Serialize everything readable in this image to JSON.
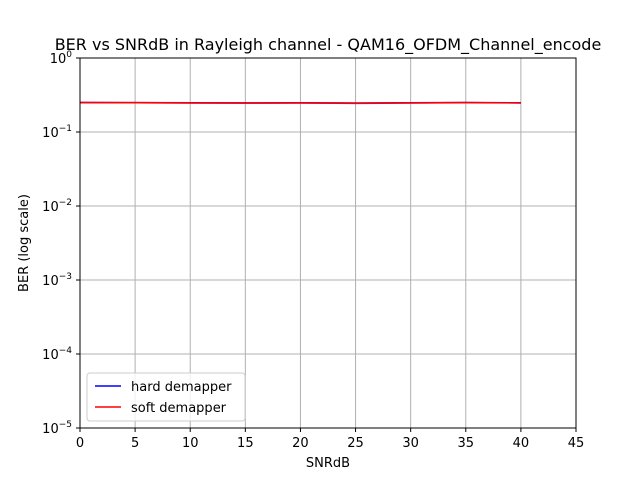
{
  "chart_data": {
    "type": "line",
    "title": "BER vs SNRdB in Rayleigh channel - QAM16_OFDM_Channel_encode",
    "xlabel": "SNRdB",
    "ylabel": "BER (log scale)",
    "xlim": [
      0,
      45
    ],
    "ylim": [
      1e-05,
      1
    ],
    "yscale": "log",
    "grid": true,
    "legend_position": "lower-left",
    "x_ticks": [
      0,
      5,
      10,
      15,
      20,
      25,
      30,
      35,
      40,
      45
    ],
    "y_ticks": [
      {
        "value": 1e-05,
        "base": "10",
        "exp": "−5"
      },
      {
        "value": 0.0001,
        "base": "10",
        "exp": "−4"
      },
      {
        "value": 0.001,
        "base": "10",
        "exp": "−3"
      },
      {
        "value": 0.01,
        "base": "10",
        "exp": "−2"
      },
      {
        "value": 0.1,
        "base": "10",
        "exp": "−1"
      },
      {
        "value": 1,
        "base": "10",
        "exp": "0"
      }
    ],
    "x": [
      0,
      5,
      10,
      15,
      20,
      25,
      30,
      35,
      40
    ],
    "series": [
      {
        "name": "hard demapper",
        "color": "#0000ff",
        "values": [
          0.25,
          0.249,
          0.248,
          0.247,
          0.248,
          0.246,
          0.248,
          0.25,
          0.248
        ]
      },
      {
        "name": "soft demapper",
        "color": "#ff0000",
        "values": [
          0.25,
          0.249,
          0.247,
          0.246,
          0.247,
          0.244,
          0.247,
          0.249,
          0.247
        ]
      }
    ]
  }
}
